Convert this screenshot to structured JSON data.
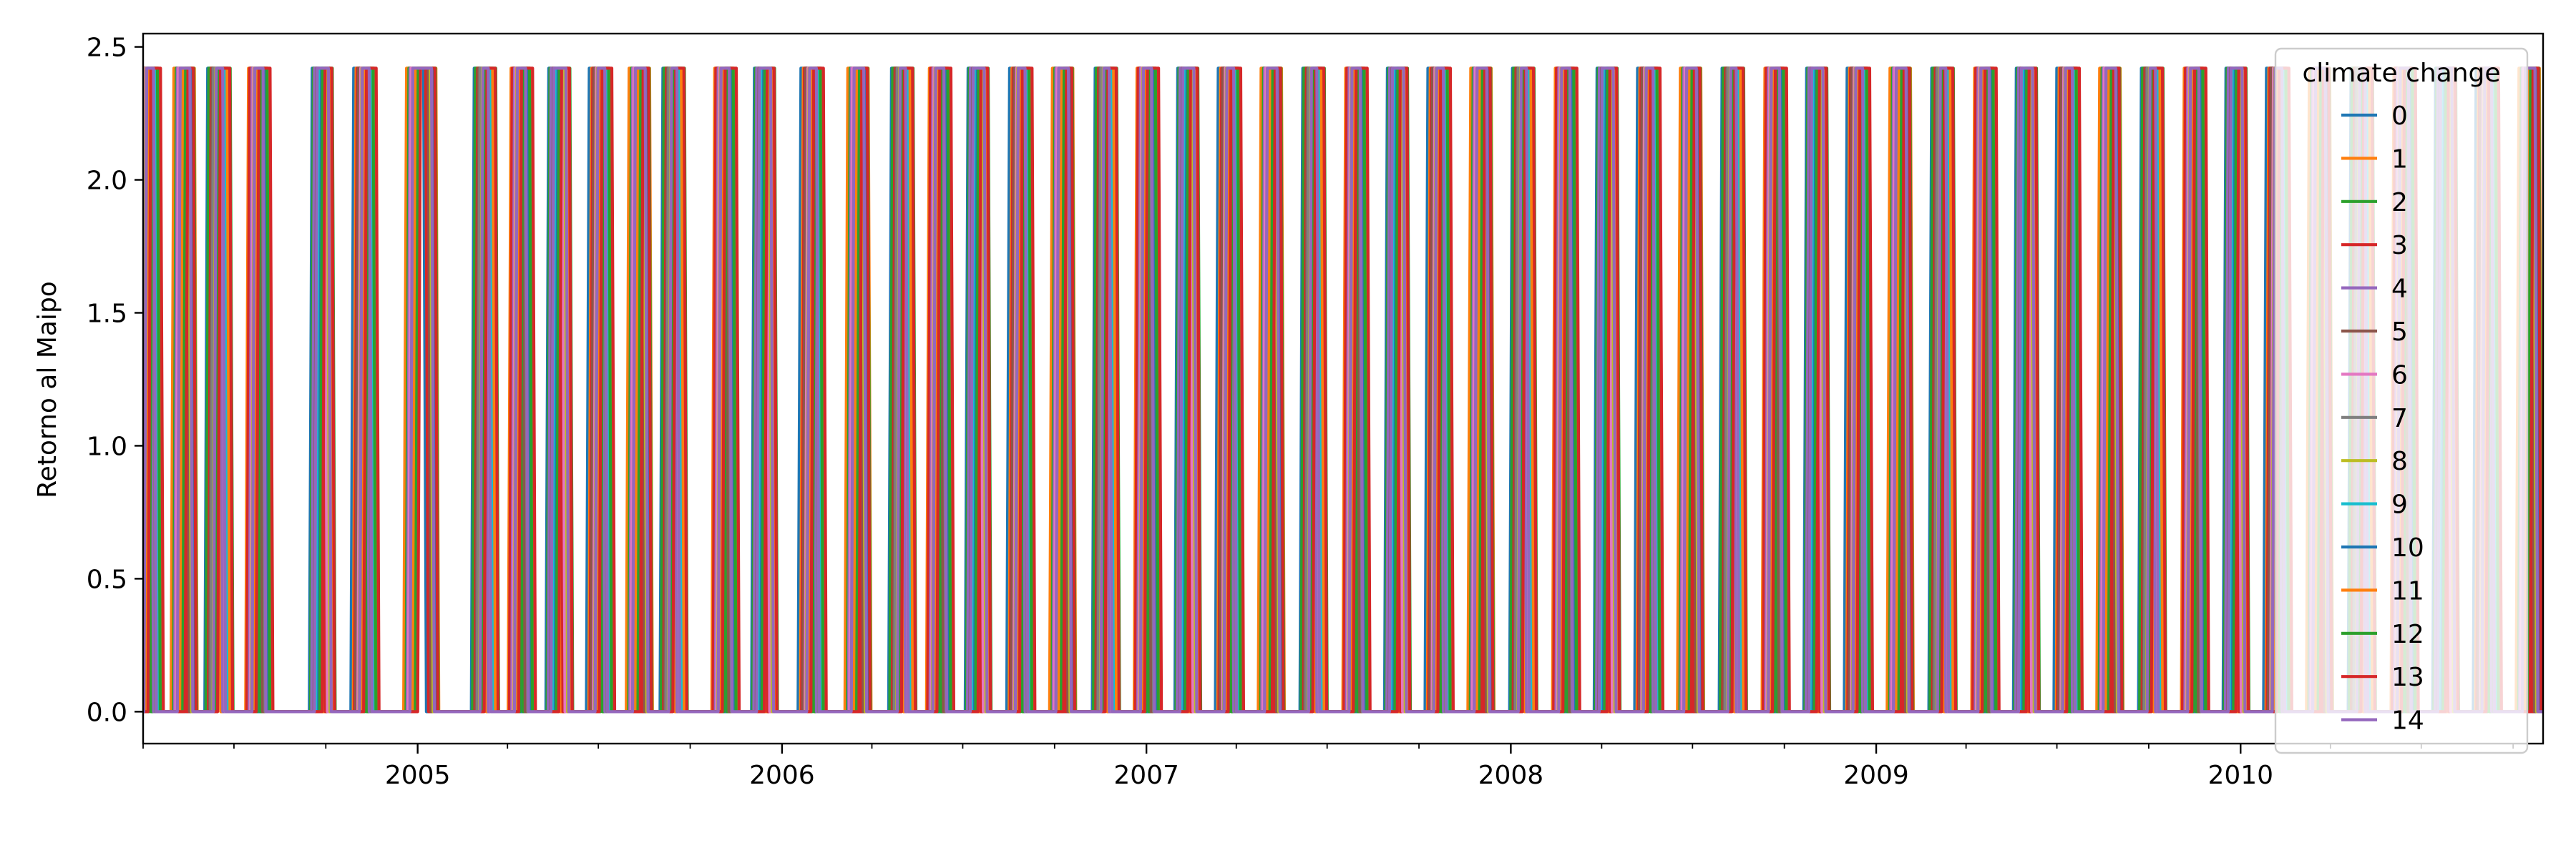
{
  "chart_data": {
    "type": "line",
    "title": "",
    "xlabel": "",
    "ylabel": "Retorno al Maipo",
    "xlim": [
      "2004-04-01",
      "2010-10-31"
    ],
    "ylim": [
      -0.12,
      2.55
    ],
    "x_ticks": [
      "2005",
      "2006",
      "2007",
      "2008",
      "2009",
      "2010"
    ],
    "x_tick_dates": [
      "2005-01-01",
      "2006-01-01",
      "2007-01-01",
      "2008-01-01",
      "2009-01-01",
      "2010-01-01"
    ],
    "y_ticks": [
      0.0,
      0.5,
      1.0,
      1.5,
      2.0,
      2.5
    ],
    "y_tick_labels": [
      "0.0",
      "0.5",
      "1.0",
      "1.5",
      "2.0",
      "2.5"
    ],
    "y_max_value": 2.42,
    "y_min_value": 0.0,
    "grid": false,
    "legend": {
      "title": "climate change",
      "placement": "top-right"
    },
    "series": [
      {
        "name": "0",
        "color": "#1f77b4"
      },
      {
        "name": "1",
        "color": "#ff7f0e"
      },
      {
        "name": "2",
        "color": "#2ca02c"
      },
      {
        "name": "3",
        "color": "#d62728"
      },
      {
        "name": "4",
        "color": "#9467bd"
      },
      {
        "name": "5",
        "color": "#8c564b"
      },
      {
        "name": "6",
        "color": "#e377c2"
      },
      {
        "name": "7",
        "color": "#7f7f7f"
      },
      {
        "name": "8",
        "color": "#bcbd22"
      },
      {
        "name": "9",
        "color": "#17becf"
      },
      {
        "name": "10",
        "color": "#1f77b4"
      },
      {
        "name": "11",
        "color": "#ff7f0e"
      },
      {
        "name": "12",
        "color": "#2ca02c"
      },
      {
        "name": "13",
        "color": "#d62728"
      },
      {
        "name": "14",
        "color": "#9467bd"
      }
    ],
    "pulses": [
      [
        "2004-04-01",
        "2004-04-15"
      ],
      [
        "2004-05-06",
        "2004-05-20"
      ],
      [
        "2004-06-09",
        "2004-06-24"
      ],
      [
        "2004-07-19",
        "2004-08-02"
      ],
      [
        "2004-09-21",
        "2004-10-05"
      ],
      [
        "2004-11-03",
        "2004-11-17"
      ],
      [
        "2004-12-25",
        "2005-01-17"
      ],
      [
        "2005-03-03",
        "2005-03-17"
      ],
      [
        "2005-04-08",
        "2005-04-22"
      ],
      [
        "2005-05-16",
        "2005-05-31"
      ],
      [
        "2005-06-27",
        "2005-07-11"
      ],
      [
        "2005-08-05",
        "2005-08-19"
      ],
      [
        "2005-09-08",
        "2005-09-22"
      ],
      [
        "2005-10-29",
        "2005-11-12"
      ],
      [
        "2005-12-08",
        "2005-12-22"
      ],
      [
        "2006-01-25",
        "2006-02-08"
      ],
      [
        "2006-03-12",
        "2006-03-26"
      ],
      [
        "2006-04-25",
        "2006-05-09"
      ],
      [
        "2006-06-01",
        "2006-06-15"
      ],
      [
        "2006-07-10",
        "2006-07-24"
      ],
      [
        "2006-08-22",
        "2006-09-05"
      ],
      [
        "2006-10-03",
        "2006-10-17"
      ],
      [
        "2006-11-15",
        "2006-11-29"
      ],
      [
        "2006-12-26",
        "2007-01-09"
      ],
      [
        "2007-02-05",
        "2007-02-19"
      ],
      [
        "2007-03-19",
        "2007-04-02"
      ],
      [
        "2007-04-30",
        "2007-05-14"
      ],
      [
        "2007-06-11",
        "2007-06-25"
      ],
      [
        "2007-07-23",
        "2007-08-06"
      ],
      [
        "2007-09-03",
        "2007-09-17"
      ],
      [
        "2007-10-15",
        "2007-10-29"
      ],
      [
        "2007-11-26",
        "2007-12-10"
      ],
      [
        "2008-01-07",
        "2008-01-21"
      ],
      [
        "2008-02-18",
        "2008-03-03"
      ],
      [
        "2008-03-31",
        "2008-04-14"
      ],
      [
        "2008-05-12",
        "2008-05-26"
      ],
      [
        "2008-06-23",
        "2008-07-07"
      ],
      [
        "2008-08-04",
        "2008-08-18"
      ],
      [
        "2008-09-15",
        "2008-09-29"
      ],
      [
        "2008-10-27",
        "2008-11-10"
      ],
      [
        "2008-12-08",
        "2008-12-22"
      ],
      [
        "2009-01-19",
        "2009-02-02"
      ],
      [
        "2009-03-02",
        "2009-03-16"
      ],
      [
        "2009-04-13",
        "2009-04-27"
      ],
      [
        "2009-05-25",
        "2009-06-08"
      ],
      [
        "2009-07-06",
        "2009-07-20"
      ],
      [
        "2009-08-17",
        "2009-08-31"
      ],
      [
        "2009-09-28",
        "2009-10-12"
      ],
      [
        "2009-11-09",
        "2009-11-23"
      ],
      [
        "2009-12-21",
        "2010-01-04"
      ],
      [
        "2010-02-01",
        "2010-02-15"
      ],
      [
        "2010-03-15",
        "2010-03-29"
      ],
      [
        "2010-04-26",
        "2010-05-10"
      ],
      [
        "2010-06-07",
        "2010-06-21"
      ],
      [
        "2010-07-19",
        "2010-08-02"
      ],
      [
        "2010-08-30",
        "2010-09-13"
      ],
      [
        "2010-10-11",
        "2010-10-25"
      ]
    ]
  }
}
